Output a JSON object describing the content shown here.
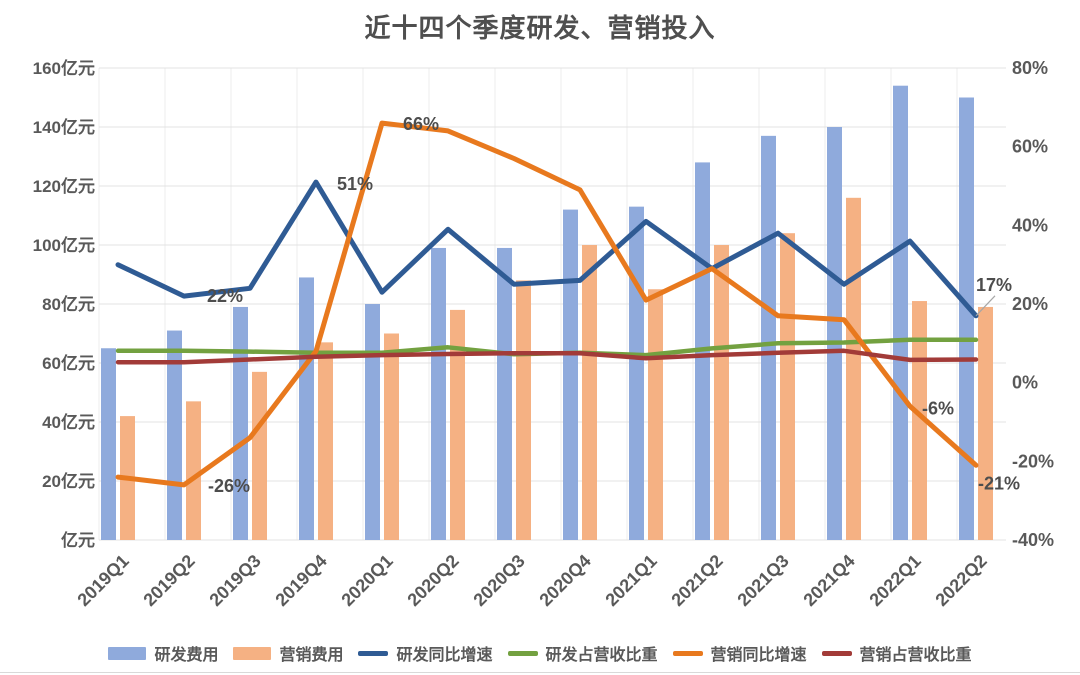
{
  "title": "近十四个季度研发、营销投入",
  "chart_data": {
    "type": "combo-bar-line",
    "title": "近十四个季度研发、营销投入",
    "categories": [
      "2019Q1",
      "2019Q2",
      "2019Q3",
      "2019Q4",
      "2020Q1",
      "2020Q2",
      "2020Q3",
      "2020Q4",
      "2021Q1",
      "2021Q2",
      "2021Q3",
      "2021Q4",
      "2022Q1",
      "2022Q2"
    ],
    "bar_series": [
      {
        "name": "研发费用",
        "axis": "left",
        "color": "#8FAADC",
        "values": [
          65,
          71,
          79,
          89,
          80,
          99,
          99,
          112,
          113,
          128,
          137,
          140,
          154,
          150
        ]
      },
      {
        "name": "营销费用",
        "axis": "left",
        "color": "#F5B183",
        "values": [
          42,
          47,
          57,
          67,
          70,
          78,
          88,
          100,
          85,
          100,
          104,
          116,
          81,
          79
        ]
      }
    ],
    "line_series": [
      {
        "name": "研发同比增速",
        "axis": "right",
        "color": "#2F5B94",
        "width": 5,
        "values": [
          30,
          22,
          24,
          51,
          23,
          39,
          25,
          26,
          41,
          29,
          38,
          25,
          36,
          17
        ]
      },
      {
        "name": "研发占营收比重",
        "axis": "right",
        "color": "#73A140",
        "width": 4.5,
        "values": [
          8.1,
          8.1,
          7.9,
          7.6,
          7.6,
          9,
          7.2,
          7.6,
          7,
          8.7,
          10,
          10.2,
          10.9,
          10.9
        ]
      },
      {
        "name": "营销同比增速",
        "axis": "right",
        "color": "#E8791E",
        "width": 5,
        "values": [
          -24,
          -26,
          -14,
          8,
          66,
          64,
          57,
          49,
          21,
          29,
          17,
          16,
          -6,
          -21
        ]
      },
      {
        "name": "营销占营收比重",
        "axis": "right",
        "color": "#A23B38",
        "width": 4.5,
        "values": [
          5.2,
          5.2,
          5.9,
          6.6,
          7,
          7.3,
          7.5,
          7.5,
          6.2,
          7,
          7.6,
          8.1,
          5.8,
          5.9
        ]
      }
    ],
    "left_axis": {
      "labels": [
        "160亿元",
        "140亿元",
        "120亿元",
        "100亿元",
        "80亿元",
        "60亿元",
        "40亿元",
        "20亿元",
        "亿元"
      ],
      "values": [
        160,
        140,
        120,
        100,
        80,
        60,
        40,
        20,
        0
      ],
      "min": 0,
      "max": 160
    },
    "right_axis": {
      "labels": [
        "80%",
        "60%",
        "40%",
        "20%",
        "0%",
        "-20%",
        "-40%"
      ],
      "values": [
        80,
        60,
        40,
        20,
        0,
        -20,
        -40
      ],
      "min": -40,
      "max": 80
    },
    "annotations": [
      {
        "label": "22%",
        "series": "研发同比增速",
        "category": "2019Q2"
      },
      {
        "label": "51%",
        "series": "研发同比增速",
        "category": "2019Q4"
      },
      {
        "label": "66%",
        "series": "营销同比增速",
        "category": "2020Q1"
      },
      {
        "label": "-26%",
        "series": "营销同比增速",
        "category": "2019Q2"
      },
      {
        "label": "17%",
        "series": "研发同比增速",
        "category": "2022Q2",
        "leader": true
      },
      {
        "label": "-6%",
        "series": "营销同比增速",
        "category": "2022Q1"
      },
      {
        "label": "-21%",
        "series": "营销同比增速",
        "category": "2022Q2"
      }
    ],
    "grid": true,
    "legend_position": "bottom",
    "legend": [
      "研发费用",
      "营销费用",
      "研发同比增速",
      "研发占营收比重",
      "营销同比增速",
      "营销占营收比重"
    ]
  },
  "colors": {
    "title_text": "#4f4f4f",
    "axis_text": "#595959",
    "annotation_text": "#4d4d4d",
    "gridline": "#e3e3e3",
    "gridline_vertical": "#ececec",
    "leader_line": "#a6a6a6",
    "bottom_rule": "#d9d9d9"
  }
}
